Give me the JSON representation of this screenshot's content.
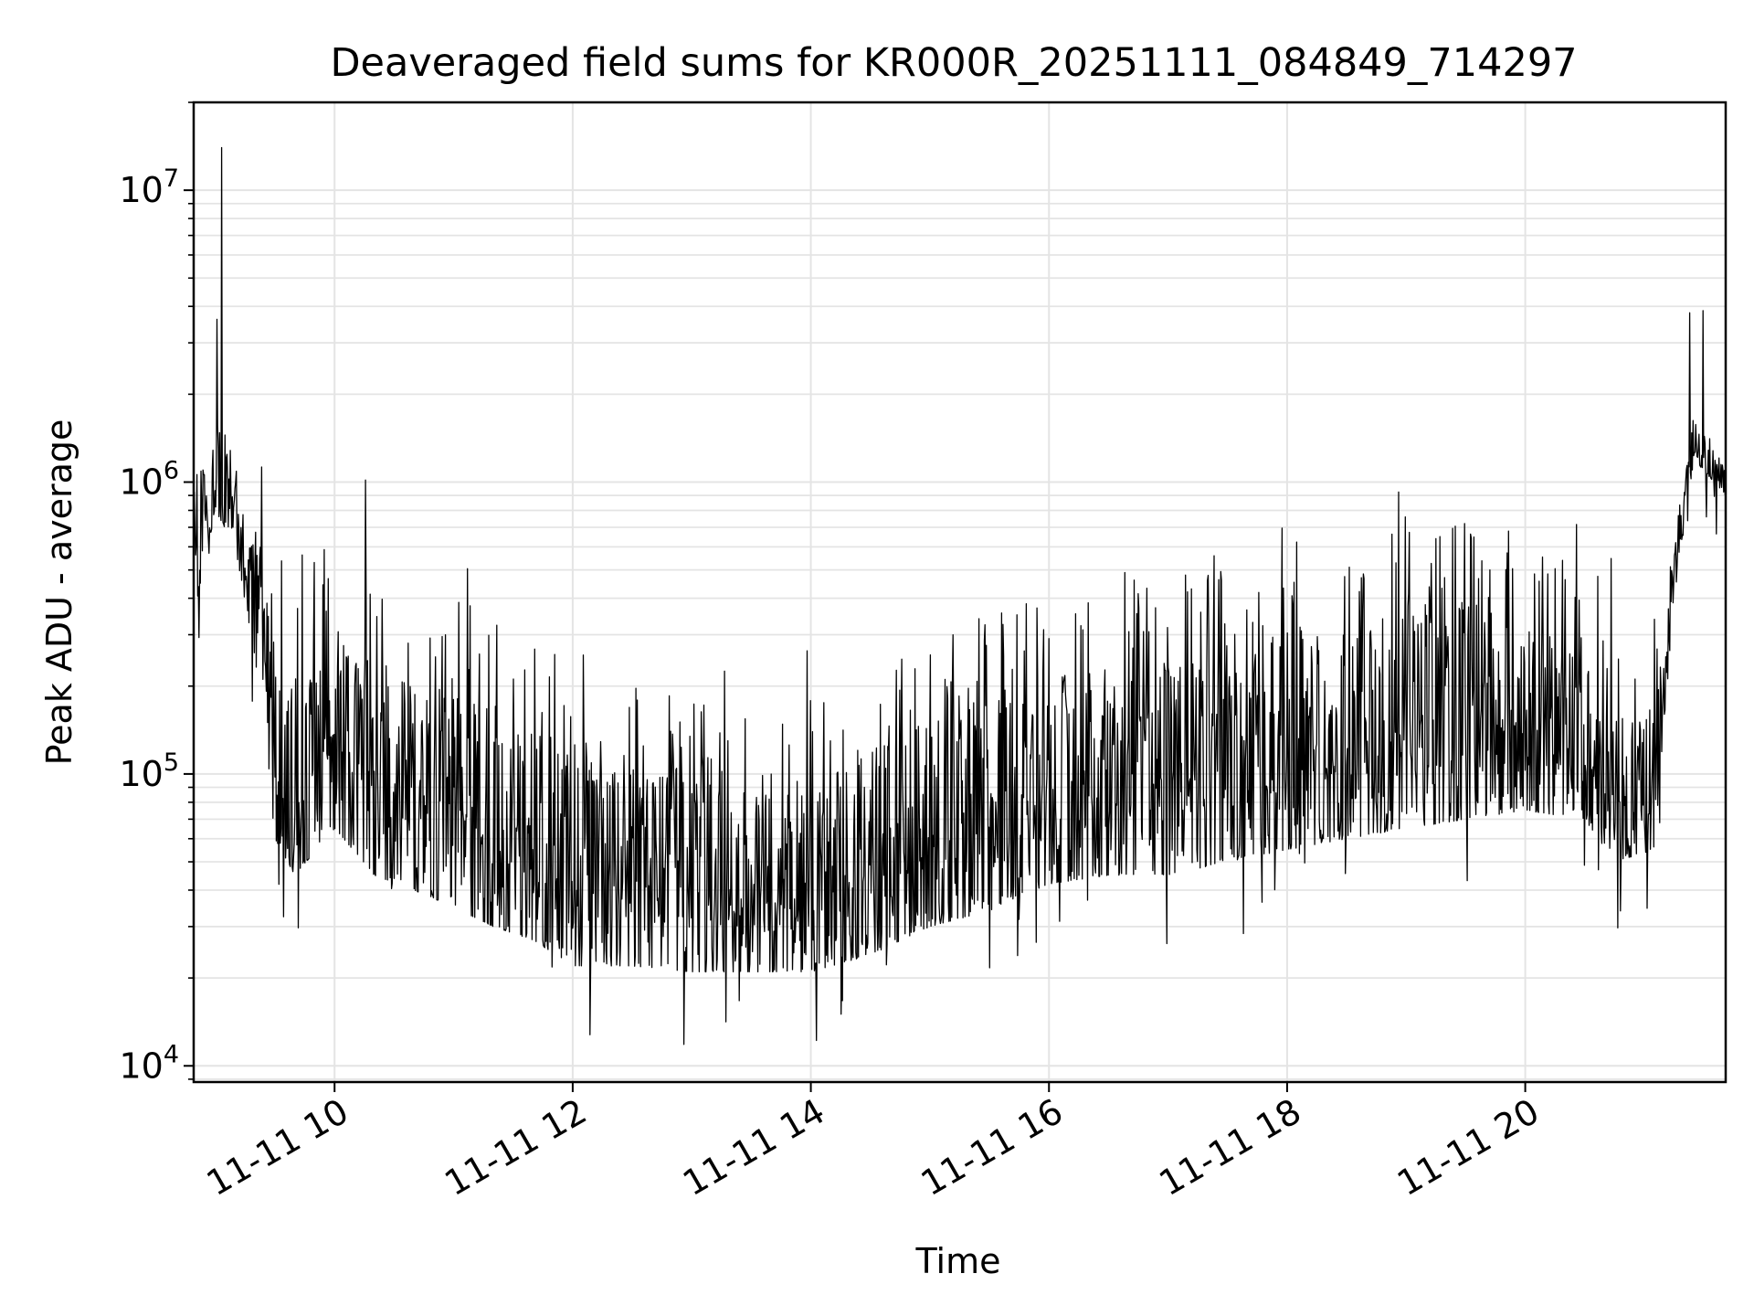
{
  "chart_data": {
    "type": "line",
    "title": "Deaveraged field sums for KR000R_20251111_084849_714297",
    "xlabel": "Time",
    "ylabel": "Peak ADU - average",
    "y_scale": "log",
    "ylim": [
      8800,
      20000000
    ],
    "xlim": [
      "2025-11-11 08:49",
      "2025-11-11 21:41"
    ],
    "grid": true,
    "legend": "none",
    "line_color": "#000000",
    "x_ticks": [
      {
        "value": "2025-11-11 10:00",
        "label": "11-11 10"
      },
      {
        "value": "2025-11-11 12:00",
        "label": "11-11 12"
      },
      {
        "value": "2025-11-11 14:00",
        "label": "11-11 14"
      },
      {
        "value": "2025-11-11 16:00",
        "label": "11-11 16"
      },
      {
        "value": "2025-11-11 18:00",
        "label": "11-11 18"
      },
      {
        "value": "2025-11-11 20:00",
        "label": "11-11 20"
      }
    ],
    "y_ticks": [
      {
        "value": 10000,
        "base": "10",
        "exp": "4"
      },
      {
        "value": 100000,
        "base": "10",
        "exp": "5"
      },
      {
        "value": 1000000,
        "base": "10",
        "exp": "6"
      },
      {
        "value": 10000000,
        "base": "10",
        "exp": "7"
      }
    ],
    "series": [
      {
        "x": [
          "2025-11-11 08:49",
          "2025-11-11 09:00",
          "2025-11-11 09:10",
          "2025-11-11 09:20",
          "2025-11-11 09:30",
          "2025-11-11 09:40",
          "2025-11-11 10:00",
          "2025-11-11 10:20",
          "2025-11-11 10:40",
          "2025-11-11 11:00",
          "2025-11-11 11:20",
          "2025-11-11 11:40",
          "2025-11-11 12:00",
          "2025-11-11 12:30",
          "2025-11-11 13:00",
          "2025-11-11 13:30",
          "2025-11-11 14:00",
          "2025-11-11 14:30",
          "2025-11-11 15:00",
          "2025-11-11 15:30",
          "2025-11-11 16:00",
          "2025-11-11 16:30",
          "2025-11-11 17:00",
          "2025-11-11 17:30",
          "2025-11-11 18:00",
          "2025-11-11 18:30",
          "2025-11-11 19:00",
          "2025-11-11 19:30",
          "2025-11-11 20:00",
          "2025-11-11 20:30",
          "2025-11-11 20:45",
          "2025-11-11 21:05",
          "2025-11-11 21:15",
          "2025-11-11 21:25",
          "2025-11-11 21:41"
        ],
        "floor": [
          350000,
          800000,
          600000,
          250000,
          60000,
          45000,
          65000,
          45000,
          40000,
          35000,
          30000,
          27000,
          22000,
          22000,
          21000,
          21000,
          21000,
          24000,
          30000,
          34000,
          42000,
          45000,
          45000,
          50000,
          55000,
          60000,
          65000,
          70000,
          75000,
          70000,
          50000,
          55000,
          400000,
          1200000,
          900000
        ],
        "peak": [
          1000000,
          1700000,
          1300000,
          900000,
          700000,
          600000,
          500000,
          450000,
          420000,
          400000,
          350000,
          300000,
          250000,
          200000,
          180000,
          160000,
          180000,
          230000,
          300000,
          380000,
          450000,
          500000,
          550000,
          650000,
          700000,
          700000,
          800000,
          800000,
          700000,
          400000,
          250000,
          250000,
          700000,
          1800000,
          1200000
        ]
      }
    ],
    "annotations": [
      {
        "x": "2025-11-11 09:03",
        "y": 14000000,
        "label": ""
      },
      {
        "x": "2025-11-11 21:23",
        "y": 3800000,
        "label": ""
      }
    ]
  }
}
